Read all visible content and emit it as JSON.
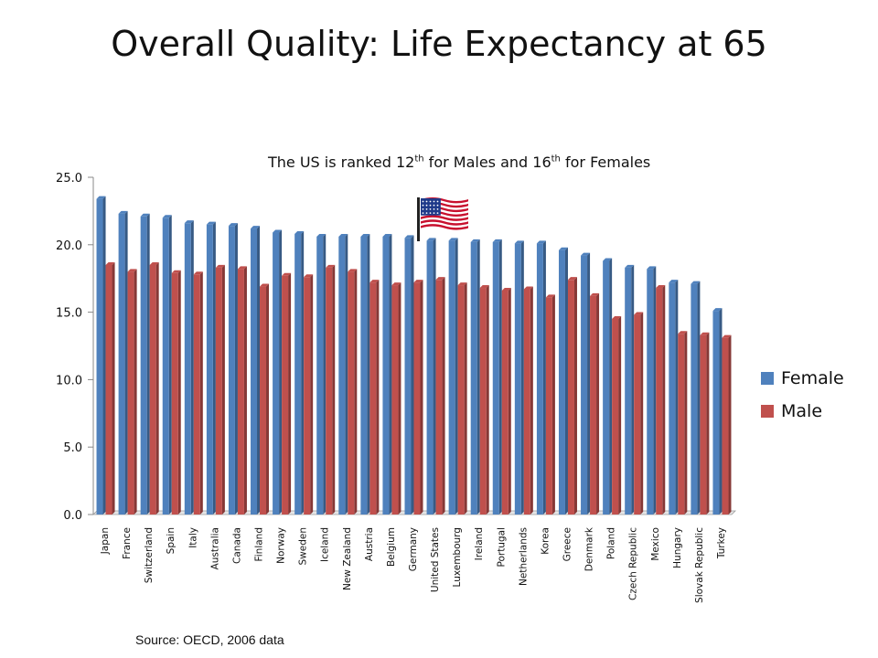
{
  "slide": {
    "title": "Overall Quality: Life Expectancy at 65",
    "annotation_prefix": "The US is ranked 12",
    "annotation_sup1": "th",
    "annotation_mid": " for Males and 16",
    "annotation_sup2": "th",
    "annotation_suffix": " for Females",
    "source": "Source: OECD, 2006 data",
    "flag_icon": "us-flag-icon"
  },
  "chart_data": {
    "type": "bar",
    "title": "",
    "xlabel": "",
    "ylabel": "",
    "ylim": [
      0,
      25
    ],
    "yticks": [
      "0.0",
      "5.0",
      "10.0",
      "15.0",
      "20.0",
      "25.0"
    ],
    "grid": false,
    "legend_position": "right",
    "categories": [
      "Japan",
      "France",
      "Switzerland",
      "Spain",
      "Italy",
      "Australia",
      "Canada",
      "Finland",
      "Norway",
      "Sweden",
      "Iceland",
      "New Zealand",
      "Austria",
      "Belgium",
      "Germany",
      "United States",
      "Luxembourg",
      "Ireland",
      "Portugal",
      "Netherlands",
      "Korea",
      "Greece",
      "Denmark",
      "Poland",
      "Czech Republic",
      "Mexico",
      "Hungary",
      "Slovak Republic",
      "Turkey"
    ],
    "series": [
      {
        "name": "Female",
        "color": "#4f81bd",
        "values": [
          23.4,
          22.3,
          22.1,
          22.0,
          21.6,
          21.5,
          21.4,
          21.2,
          20.9,
          20.8,
          20.6,
          20.6,
          20.6,
          20.6,
          20.5,
          20.3,
          20.3,
          20.2,
          20.2,
          20.1,
          20.1,
          19.6,
          19.2,
          18.8,
          18.3,
          18.2,
          17.2,
          17.1,
          15.1
        ]
      },
      {
        "name": "Male",
        "color": "#c0504d",
        "values": [
          18.5,
          18.0,
          18.5,
          17.9,
          17.8,
          18.3,
          18.2,
          16.9,
          17.7,
          17.6,
          18.3,
          18.0,
          17.2,
          17.0,
          17.2,
          17.4,
          17.0,
          16.8,
          16.6,
          16.7,
          16.1,
          17.4,
          16.2,
          14.5,
          14.8,
          16.8,
          13.4,
          13.3,
          13.1
        ]
      }
    ]
  }
}
